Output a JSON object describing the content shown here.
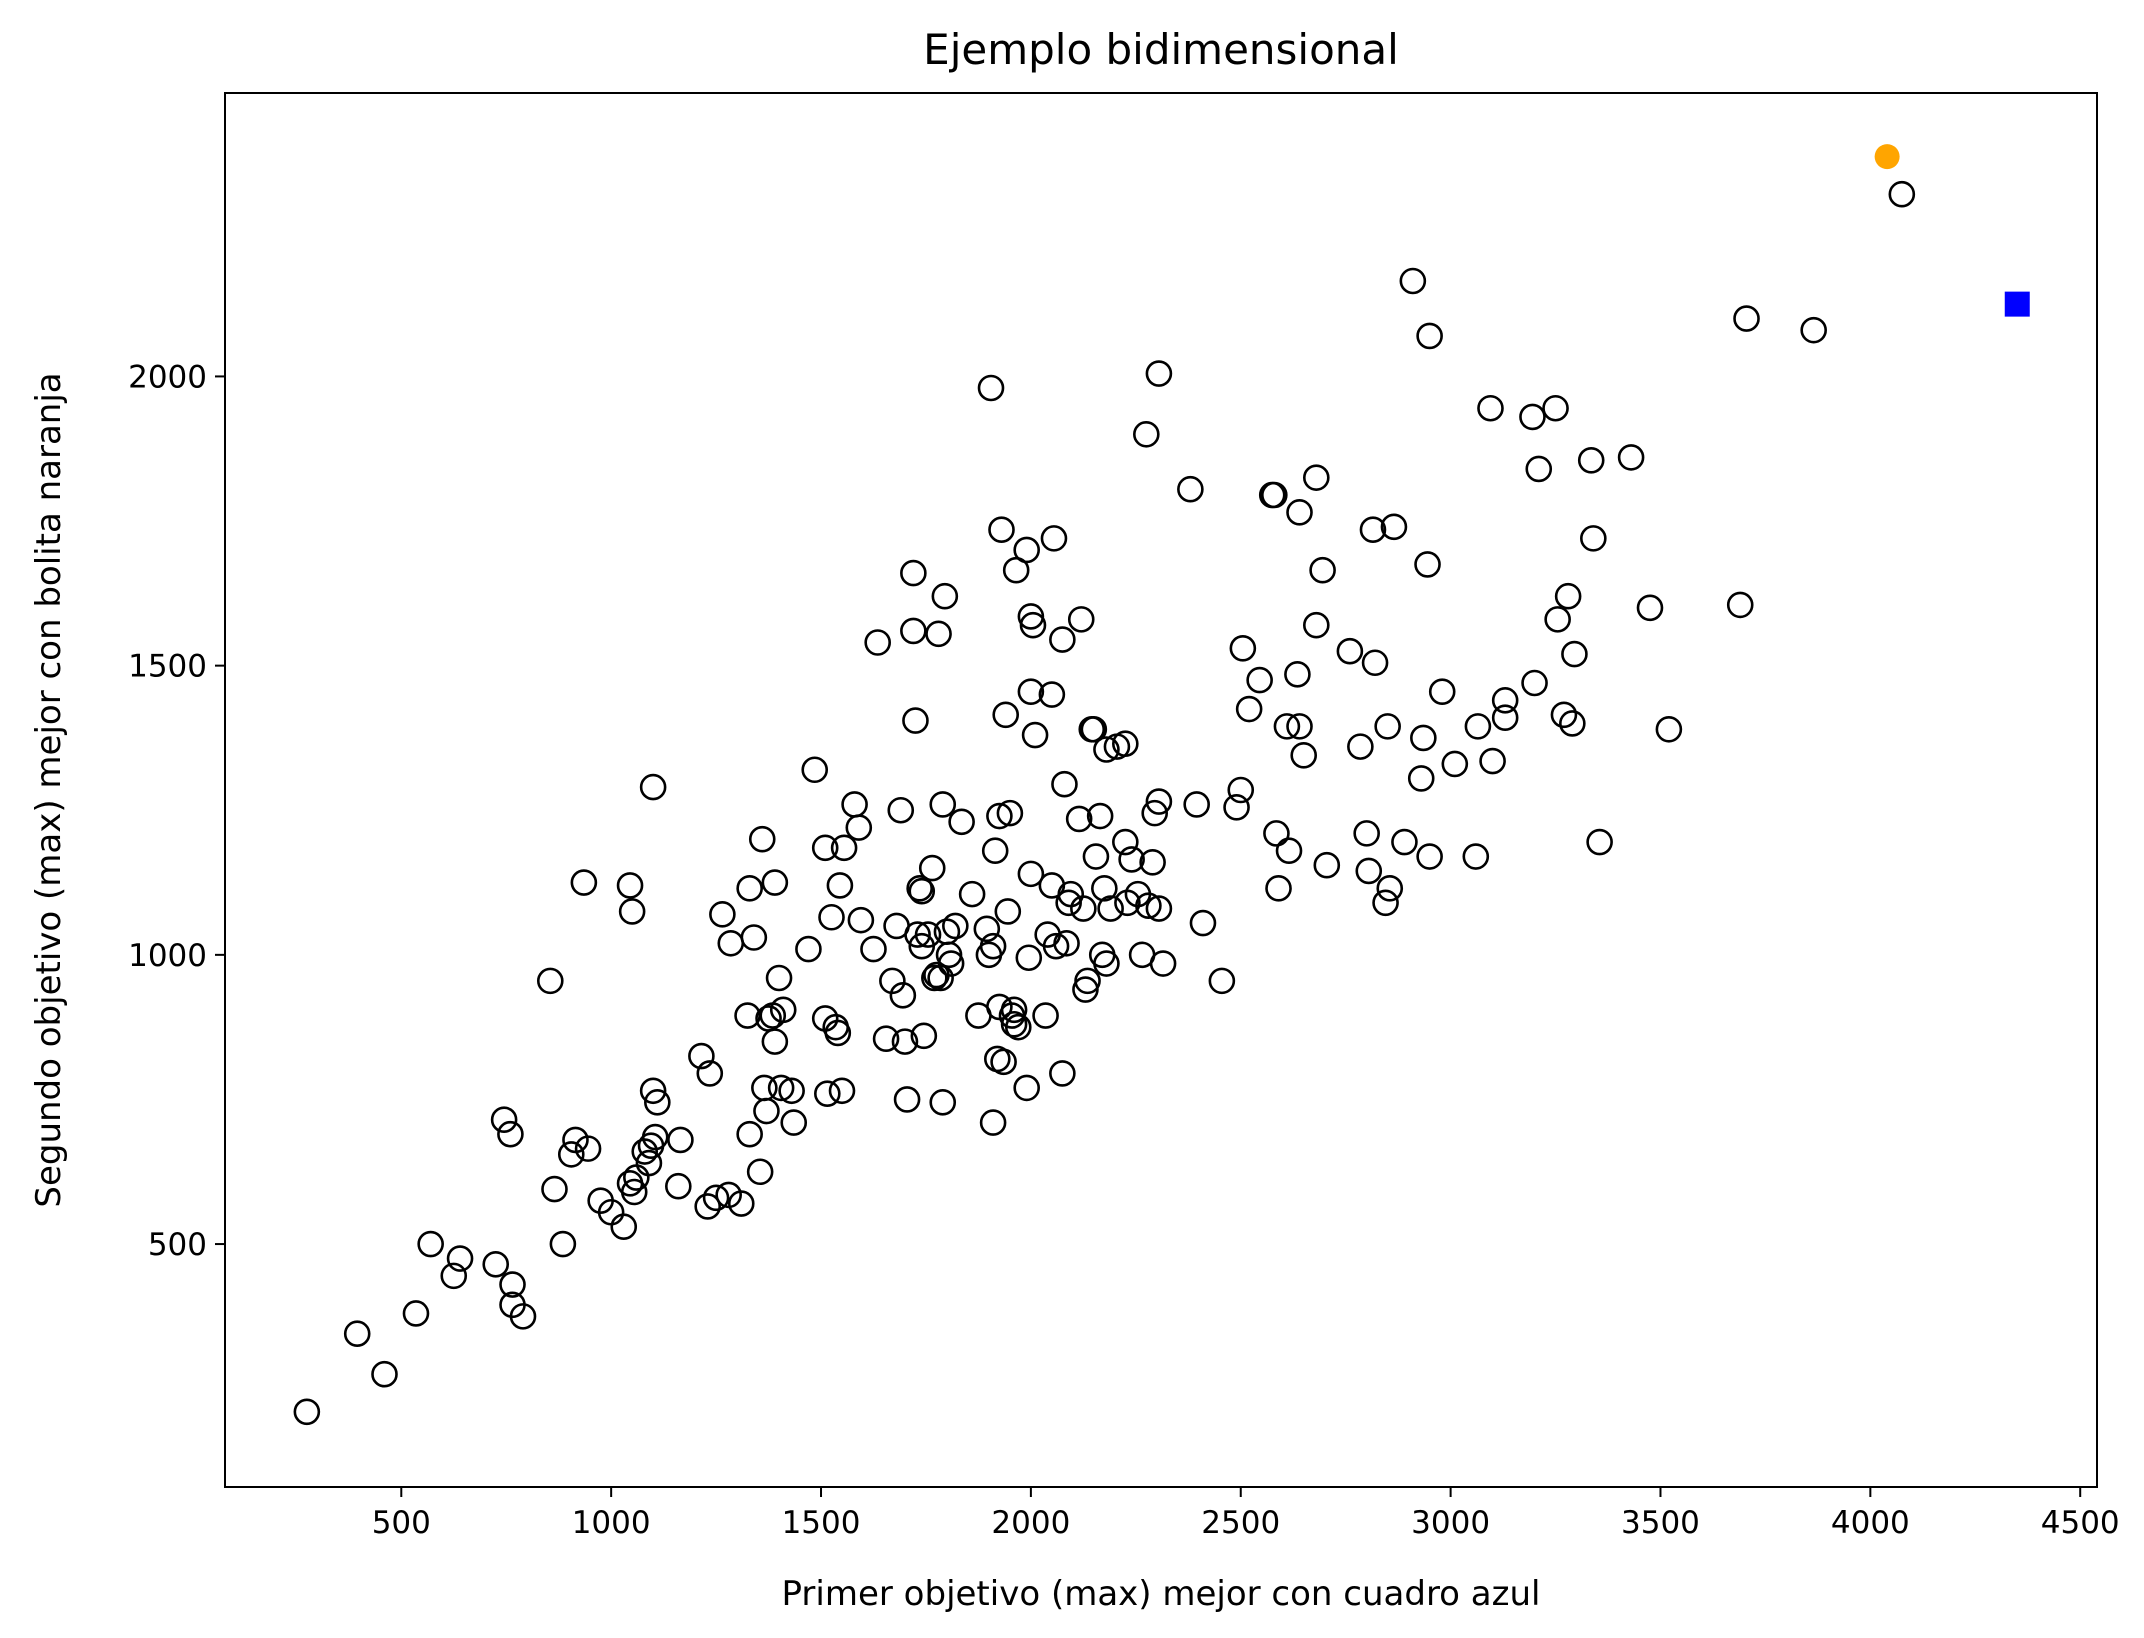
{
  "chart_data": {
    "type": "scatter",
    "title": "Ejemplo bidimensional",
    "xlabel": "Primer objetivo (max) mejor con cuadro azul",
    "ylabel": "Segundo objetivo (max) mejor con bolita naranja",
    "xlim": [
      80,
      4540
    ],
    "ylim": [
      80,
      2490
    ],
    "xticks": [
      500,
      1000,
      1500,
      2000,
      2500,
      3000,
      3500,
      4000,
      4500
    ],
    "yticks": [
      500,
      1000,
      1500,
      2000
    ],
    "grid": false,
    "legend": "none",
    "colors": {
      "marker_edge": "#000000",
      "orange": "#FFA500",
      "blue": "#0000FF"
    },
    "series": [
      {
        "marker": "open-circle",
        "points": [
          [
            275,
            210
          ],
          [
            395,
            345
          ],
          [
            460,
            275
          ],
          [
            535,
            380
          ],
          [
            570,
            500
          ],
          [
            625,
            445
          ],
          [
            640,
            475
          ],
          [
            725,
            465
          ],
          [
            745,
            715
          ],
          [
            760,
            690
          ],
          [
            765,
            430
          ],
          [
            765,
            395
          ],
          [
            790,
            375
          ],
          [
            855,
            955
          ],
          [
            865,
            595
          ],
          [
            885,
            500
          ],
          [
            905,
            655
          ],
          [
            915,
            680
          ],
          [
            935,
            1125
          ],
          [
            945,
            665
          ],
          [
            975,
            575
          ],
          [
            1000,
            555
          ],
          [
            1030,
            530
          ],
          [
            1045,
            1120
          ],
          [
            1045,
            605
          ],
          [
            1050,
            1075
          ],
          [
            1055,
            590
          ],
          [
            1060,
            615
          ],
          [
            1080,
            660
          ],
          [
            1090,
            640
          ],
          [
            1095,
            670
          ],
          [
            1100,
            1290
          ],
          [
            1100,
            765
          ],
          [
            1105,
            685
          ],
          [
            1110,
            745
          ],
          [
            1160,
            600
          ],
          [
            1165,
            680
          ],
          [
            1215,
            825
          ],
          [
            1230,
            565
          ],
          [
            1235,
            795
          ],
          [
            1250,
            580
          ],
          [
            1265,
            1070
          ],
          [
            1280,
            585
          ],
          [
            1285,
            1020
          ],
          [
            1310,
            570
          ],
          [
            1325,
            895
          ],
          [
            1330,
            1115
          ],
          [
            1330,
            690
          ],
          [
            1340,
            1030
          ],
          [
            1355,
            625
          ],
          [
            1360,
            1200
          ],
          [
            1365,
            770
          ],
          [
            1370,
            730
          ],
          [
            1375,
            890
          ],
          [
            1385,
            895
          ],
          [
            1390,
            850
          ],
          [
            1390,
            1125
          ],
          [
            1400,
            960
          ],
          [
            1405,
            770
          ],
          [
            1410,
            905
          ],
          [
            1430,
            765
          ],
          [
            1435,
            710
          ],
          [
            1470,
            1010
          ],
          [
            1485,
            1320
          ],
          [
            1510,
            1185
          ],
          [
            1510,
            890
          ],
          [
            1515,
            760
          ],
          [
            1525,
            1065
          ],
          [
            1535,
            875
          ],
          [
            1540,
            865
          ],
          [
            1545,
            1120
          ],
          [
            1550,
            765
          ],
          [
            1555,
            1185
          ],
          [
            1580,
            1260
          ],
          [
            1590,
            1220
          ],
          [
            1595,
            1060
          ],
          [
            1625,
            1010
          ],
          [
            1635,
            1540
          ],
          [
            1655,
            855
          ],
          [
            1670,
            955
          ],
          [
            1680,
            1050
          ],
          [
            1690,
            1250
          ],
          [
            1695,
            930
          ],
          [
            1700,
            850
          ],
          [
            1705,
            750
          ],
          [
            1720,
            1660
          ],
          [
            1720,
            1560
          ],
          [
            1725,
            1405
          ],
          [
            1730,
            1035
          ],
          [
            1735,
            1115
          ],
          [
            1740,
            1015
          ],
          [
            1740,
            1110
          ],
          [
            1745,
            860
          ],
          [
            1755,
            1035
          ],
          [
            1765,
            1150
          ],
          [
            1770,
            960
          ],
          [
            1775,
            965
          ],
          [
            1780,
            1555
          ],
          [
            1785,
            960
          ],
          [
            1790,
            1260
          ],
          [
            1790,
            745
          ],
          [
            1795,
            1620
          ],
          [
            1800,
            1040
          ],
          [
            1805,
            1000
          ],
          [
            1810,
            985
          ],
          [
            1820,
            1050
          ],
          [
            1835,
            1230
          ],
          [
            1860,
            1105
          ],
          [
            1875,
            895
          ],
          [
            1895,
            1045
          ],
          [
            1900,
            1000
          ],
          [
            1905,
            1980
          ],
          [
            1910,
            1015
          ],
          [
            1910,
            710
          ],
          [
            1915,
            1180
          ],
          [
            1920,
            820
          ],
          [
            1925,
            1240
          ],
          [
            1925,
            910
          ],
          [
            1930,
            1735
          ],
          [
            1935,
            815
          ],
          [
            1940,
            1415
          ],
          [
            1945,
            1075
          ],
          [
            1950,
            1245
          ],
          [
            1955,
            895
          ],
          [
            1960,
            905
          ],
          [
            1960,
            880
          ],
          [
            1965,
            1665
          ],
          [
            1970,
            875
          ],
          [
            1990,
            1700
          ],
          [
            1990,
            770
          ],
          [
            1995,
            995
          ],
          [
            2000,
            1585
          ],
          [
            2000,
            1455
          ],
          [
            2000,
            1140
          ],
          [
            2005,
            1570
          ],
          [
            2010,
            1380
          ],
          [
            2035,
            895
          ],
          [
            2040,
            1035
          ],
          [
            2050,
            1120
          ],
          [
            2050,
            1450
          ],
          [
            2055,
            1720
          ],
          [
            2060,
            1015
          ],
          [
            2075,
            1545
          ],
          [
            2075,
            795
          ],
          [
            2080,
            1295
          ],
          [
            2085,
            1020
          ],
          [
            2090,
            1090
          ],
          [
            2095,
            1105
          ],
          [
            2115,
            1235
          ],
          [
            2120,
            1580
          ],
          [
            2125,
            1080
          ],
          [
            2130,
            940
          ],
          [
            2135,
            955
          ],
          [
            2145,
            1390
          ],
          [
            2150,
            1390
          ],
          [
            2155,
            1170
          ],
          [
            2165,
            1240
          ],
          [
            2170,
            1000
          ],
          [
            2175,
            1115
          ],
          [
            2180,
            1355
          ],
          [
            2180,
            985
          ],
          [
            2190,
            1080
          ],
          [
            2205,
            1360
          ],
          [
            2225,
            1365
          ],
          [
            2225,
            1195
          ],
          [
            2230,
            1090
          ],
          [
            2240,
            1165
          ],
          [
            2255,
            1105
          ],
          [
            2265,
            1000
          ],
          [
            2275,
            1900
          ],
          [
            2280,
            1085
          ],
          [
            2290,
            1160
          ],
          [
            2295,
            1245
          ],
          [
            2305,
            2005
          ],
          [
            2305,
            1265
          ],
          [
            2305,
            1080
          ],
          [
            2315,
            985
          ],
          [
            2380,
            1805
          ],
          [
            2395,
            1260
          ],
          [
            2410,
            1055
          ],
          [
            2455,
            955
          ],
          [
            2490,
            1255
          ],
          [
            2500,
            1285
          ],
          [
            2505,
            1530
          ],
          [
            2520,
            1425
          ],
          [
            2545,
            1475
          ],
          [
            2575,
            1795
          ],
          [
            2580,
            1795
          ],
          [
            2585,
            1210
          ],
          [
            2590,
            1115
          ],
          [
            2610,
            1395
          ],
          [
            2615,
            1180
          ],
          [
            2635,
            1485
          ],
          [
            2640,
            1765
          ],
          [
            2640,
            1395
          ],
          [
            2650,
            1345
          ],
          [
            2680,
            1825
          ],
          [
            2680,
            1570
          ],
          [
            2695,
            1665
          ],
          [
            2705,
            1155
          ],
          [
            2760,
            1525
          ],
          [
            2785,
            1360
          ],
          [
            2800,
            1210
          ],
          [
            2805,
            1145
          ],
          [
            2815,
            1735
          ],
          [
            2820,
            1505
          ],
          [
            2845,
            1090
          ],
          [
            2850,
            1395
          ],
          [
            2855,
            1115
          ],
          [
            2865,
            1740
          ],
          [
            2890,
            1195
          ],
          [
            2910,
            2165
          ],
          [
            2930,
            1305
          ],
          [
            2935,
            1375
          ],
          [
            2945,
            1675
          ],
          [
            2950,
            1170
          ],
          [
            2950,
            2070
          ],
          [
            2980,
            1455
          ],
          [
            3010,
            1330
          ],
          [
            3060,
            1170
          ],
          [
            3065,
            1395
          ],
          [
            3095,
            1945
          ],
          [
            3100,
            1335
          ],
          [
            3130,
            1410
          ],
          [
            3130,
            1440
          ],
          [
            3195,
            1930
          ],
          [
            3200,
            1470
          ],
          [
            3210,
            1840
          ],
          [
            3250,
            1945
          ],
          [
            3255,
            1580
          ],
          [
            3270,
            1415
          ],
          [
            3280,
            1620
          ],
          [
            3290,
            1400
          ],
          [
            3295,
            1520
          ],
          [
            3335,
            1855
          ],
          [
            3340,
            1720
          ],
          [
            3355,
            1195
          ],
          [
            3430,
            1860
          ],
          [
            3475,
            1600
          ],
          [
            3520,
            1390
          ],
          [
            3690,
            1605
          ],
          [
            3705,
            2100
          ],
          [
            3865,
            2080
          ],
          [
            4075,
            2315
          ]
        ]
      },
      {
        "marker": "filled-circle",
        "color": "#FFA500",
        "points": [
          [
            4040,
            2380
          ]
        ]
      },
      {
        "marker": "filled-square",
        "color": "#0000FF",
        "points": [
          [
            4350,
            2125
          ]
        ]
      }
    ]
  }
}
